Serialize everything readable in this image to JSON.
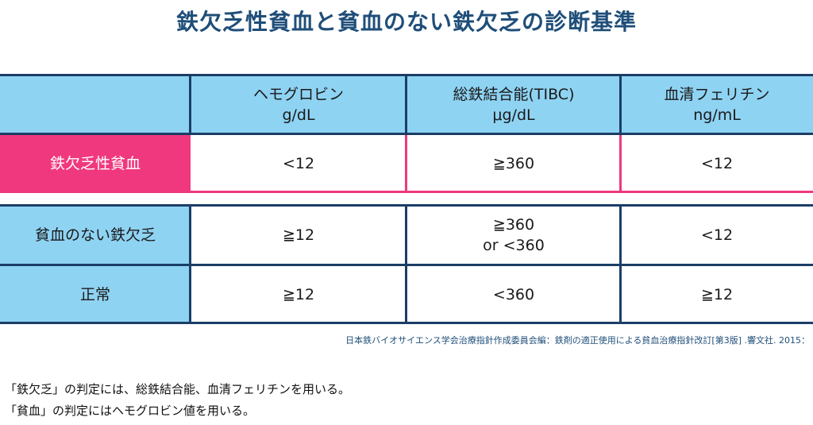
{
  "title": "鉄欠乏性貧血と貧血のない鉄欠乏の診断基準",
  "table": {
    "headers": [
      {
        "line1": "ヘモグロビン",
        "line2": "g/dL"
      },
      {
        "line1": "総鉄結合能(TIBC)",
        "line2": "μg/dL"
      },
      {
        "line1": "血清フェリチン",
        "line2": "ng/mL"
      }
    ],
    "rows": [
      {
        "label": "鉄欠乏性貧血",
        "hb": "<12",
        "tibc": "≧360",
        "tibc2": "",
        "ferritin": "<12"
      },
      {
        "label": "貧血のない鉄欠乏",
        "hb": "≧12",
        "tibc": "≧360",
        "tibc2": "or <360",
        "ferritin": "<12"
      },
      {
        "label": "正常",
        "hb": "≧12",
        "tibc": "<360",
        "tibc2": "",
        "ferritin": "≧12"
      }
    ]
  },
  "source": "日本鉄バイオサイエンス学会治療指針作成委員会編：鉄剤の適正使用による貧血治療指針改訂[第3版] .響文社. 2015：",
  "notes": [
    "「鉄欠乏」の判定には、総鉄結合能、血清フェリチンを用いる。",
    "「貧血」の判定にはヘモグロビン値を用いる。"
  ],
  "colors": {
    "header": "#8fd3f3",
    "highlight": "#f0387e",
    "border": "#1b3e66",
    "title": "#1f4e79"
  }
}
